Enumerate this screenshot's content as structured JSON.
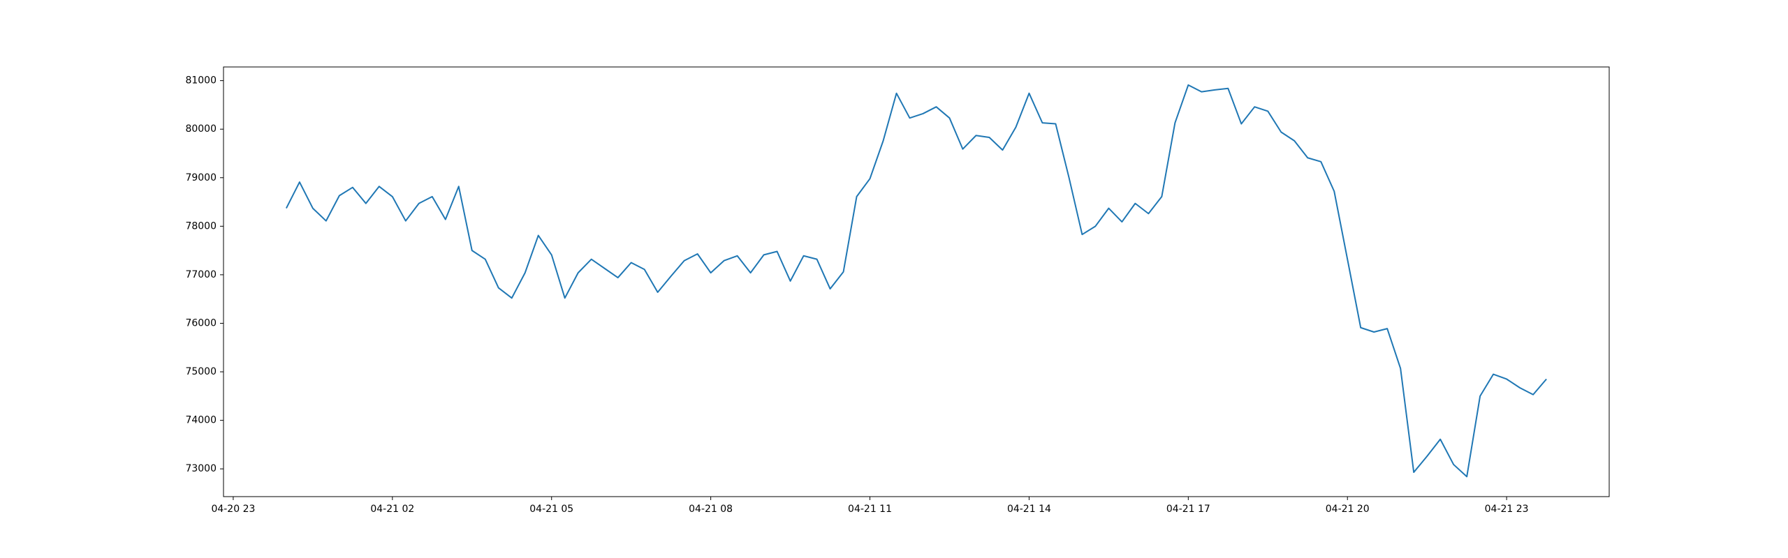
{
  "chart_data": {
    "type": "line",
    "x": [
      "04-21 00:00",
      "04-21 00:15",
      "04-21 00:30",
      "04-21 00:45",
      "04-21 01:00",
      "04-21 01:15",
      "04-21 01:30",
      "04-21 01:45",
      "04-21 02:00",
      "04-21 02:15",
      "04-21 02:30",
      "04-21 02:45",
      "04-21 03:00",
      "04-21 03:15",
      "04-21 03:30",
      "04-21 03:45",
      "04-21 04:00",
      "04-21 04:15",
      "04-21 04:30",
      "04-21 04:45",
      "04-21 05:00",
      "04-21 05:15",
      "04-21 05:30",
      "04-21 05:45",
      "04-21 06:00",
      "04-21 06:15",
      "04-21 06:30",
      "04-21 06:45",
      "04-21 07:00",
      "04-21 07:15",
      "04-21 07:30",
      "04-21 07:45",
      "04-21 08:00",
      "04-21 08:15",
      "04-21 08:30",
      "04-21 08:45",
      "04-21 09:00",
      "04-21 09:15",
      "04-21 09:30",
      "04-21 09:45",
      "04-21 10:00",
      "04-21 10:15",
      "04-21 10:30",
      "04-21 10:45",
      "04-21 11:00",
      "04-21 11:15",
      "04-21 11:30",
      "04-21 11:45",
      "04-21 12:00",
      "04-21 12:15",
      "04-21 12:30",
      "04-21 12:45",
      "04-21 13:00",
      "04-21 13:15",
      "04-21 13:30",
      "04-21 13:45",
      "04-21 14:00",
      "04-21 14:15",
      "04-21 14:30",
      "04-21 14:45",
      "04-21 15:00",
      "04-21 15:15",
      "04-21 15:30",
      "04-21 15:45",
      "04-21 16:00",
      "04-21 16:15",
      "04-21 16:30",
      "04-21 16:45",
      "04-21 17:00",
      "04-21 17:15",
      "04-21 17:30",
      "04-21 17:45",
      "04-21 18:00",
      "04-21 18:15",
      "04-21 18:30",
      "04-21 18:45",
      "04-21 19:00",
      "04-21 19:15",
      "04-21 19:30",
      "04-21 19:45",
      "04-21 20:00",
      "04-21 20:15",
      "04-21 20:30",
      "04-21 20:45",
      "04-21 21:00",
      "04-21 21:15",
      "04-21 21:30",
      "04-21 21:45",
      "04-21 22:00",
      "04-21 22:15",
      "04-21 22:30",
      "04-21 22:45",
      "04-21 23:00",
      "04-21 23:15",
      "04-21 23:30",
      "04-21 23:45"
    ],
    "series": [
      {
        "color": "#1f77b4",
        "values": [
          78370,
          78910,
          78370,
          78110,
          78630,
          78800,
          78470,
          78820,
          78610,
          78110,
          78470,
          78610,
          78140,
          78820,
          77500,
          77320,
          76730,
          76520,
          77040,
          77810,
          77410,
          76520,
          77040,
          77320,
          77130,
          76940,
          77250,
          77110,
          76640,
          76970,
          77290,
          77430,
          77040,
          77290,
          77390,
          77040,
          77410,
          77480,
          76870,
          77390,
          77320,
          76710,
          77060,
          78610,
          78980,
          79760,
          80740,
          80230,
          80320,
          80460,
          80230,
          79590,
          79870,
          79830,
          79570,
          80040,
          80740,
          80130,
          80110,
          79010,
          77830,
          78000,
          78370,
          78090,
          78470,
          78260,
          78610,
          80130,
          80910,
          80770,
          80810,
          80840,
          80110,
          80460,
          80370,
          79940,
          79760,
          79410,
          79330,
          78720,
          77320,
          75910,
          75820,
          75890,
          75070,
          72930,
          73260,
          73610,
          73090,
          72840,
          74500,
          74950,
          74850,
          74670,
          74530,
          74850
        ]
      }
    ],
    "xlim": [
      "04-20 22:49",
      "04-22 00:56"
    ],
    "xticks": [
      "04-20 23",
      "04-21 02",
      "04-21 05",
      "04-21 08",
      "04-21 11",
      "04-21 14",
      "04-21 17",
      "04-21 20",
      "04-21 23"
    ],
    "ylim": [
      72428,
      81282
    ],
    "yticks": [
      73000,
      74000,
      75000,
      76000,
      77000,
      78000,
      79000,
      80000,
      81000
    ]
  }
}
